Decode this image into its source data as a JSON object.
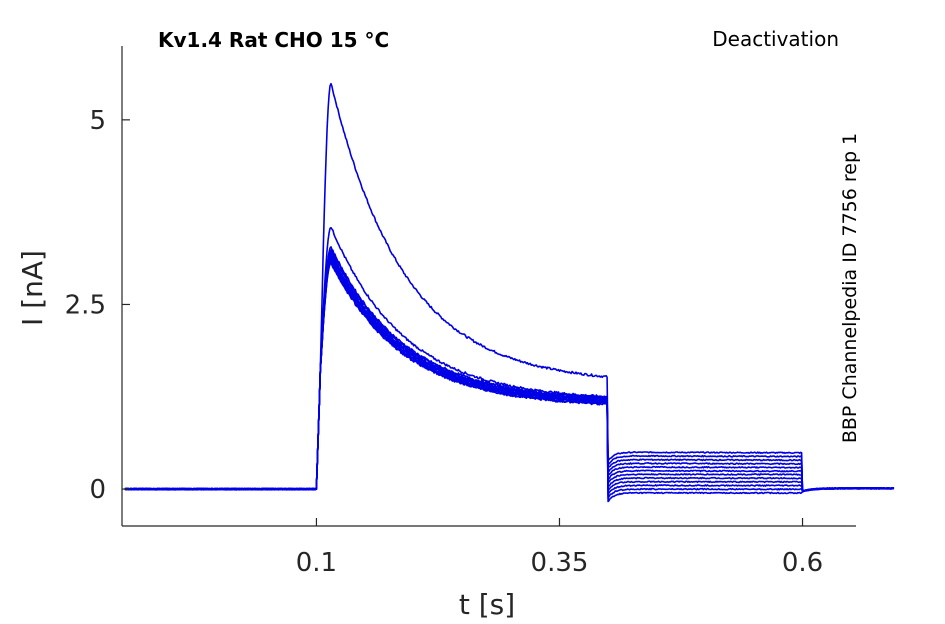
{
  "chart_data": {
    "type": "line",
    "title": "Kv1.4  Rat  CHO  15 °C",
    "protocol": "Deactivation",
    "side_label": "BBP Channelpedia ID 7756 rep 1",
    "xlabel": "t [s]",
    "ylabel": "I [nA]",
    "xlim": [
      -0.1,
      0.655
    ],
    "ylim": [
      -0.5,
      6.0
    ],
    "xticks": [
      {
        "value": 0.1,
        "label": "0.1"
      },
      {
        "value": 0.35,
        "label": "0.35"
      },
      {
        "value": 0.6,
        "label": "0.6"
      }
    ],
    "yticks": [
      {
        "value": 0,
        "label": "0"
      },
      {
        "value": 2.5,
        "label": "2.5"
      },
      {
        "value": 5,
        "label": "5"
      }
    ],
    "grid": false,
    "line_color": "#0000e6",
    "protocol_times": {
      "step_on": 0.1,
      "step_off": 0.4,
      "tail_off": 0.6,
      "end": 0.6
    },
    "series": [
      {
        "peak": 5.5,
        "end_level": 1.52,
        "tail": 0.5
      },
      {
        "peak": 3.55,
        "end_level": 1.25,
        "tail": 0.45
      },
      {
        "peak": 3.28,
        "end_level": 1.24,
        "tail": 0.4
      },
      {
        "peak": 3.25,
        "end_level": 1.23,
        "tail": 0.35
      },
      {
        "peak": 3.22,
        "end_level": 1.22,
        "tail": 0.3
      },
      {
        "peak": 3.19,
        "end_level": 1.21,
        "tail": 0.25
      },
      {
        "peak": 3.17,
        "end_level": 1.2,
        "tail": 0.2
      },
      {
        "peak": 3.15,
        "end_level": 1.19,
        "tail": 0.15
      },
      {
        "peak": 3.12,
        "end_level": 1.18,
        "tail": 0.1
      },
      {
        "peak": 3.1,
        "end_level": 1.17,
        "tail": 0.05
      },
      {
        "peak": 3.08,
        "end_level": 1.16,
        "tail": 0.0
      },
      {
        "peak": 3.06,
        "end_level": 1.15,
        "tail": -0.05
      }
    ]
  }
}
